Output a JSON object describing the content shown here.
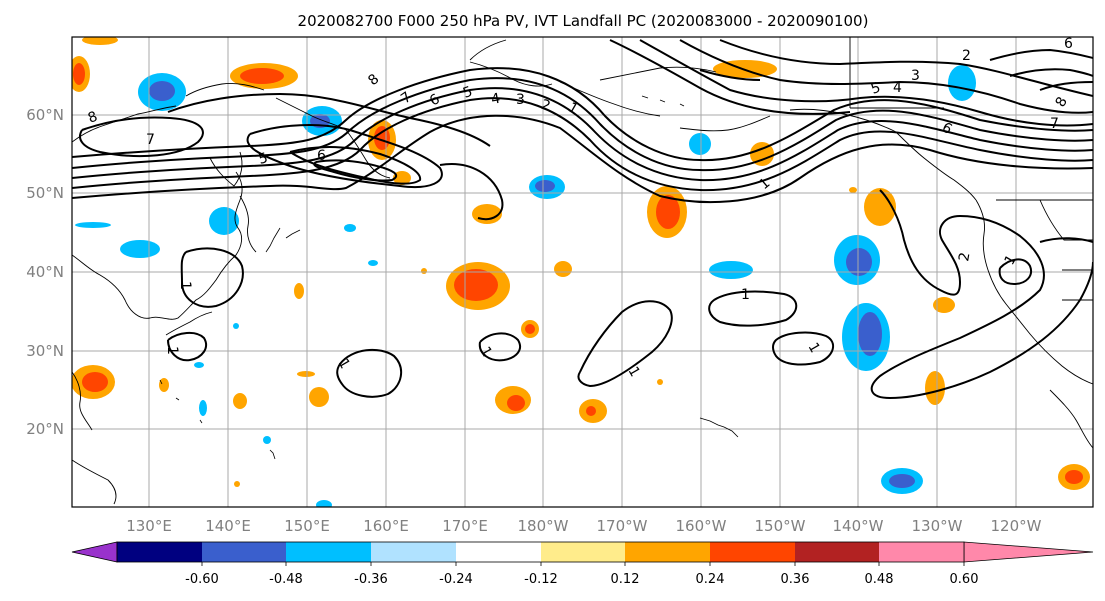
{
  "title": "2020082700 F000 250 hPa PV, IVT Landfall PC (2020083000 - 2020090100)",
  "lat_labels": [
    "60°N",
    "50°N",
    "40°N",
    "30°N",
    "20°N"
  ],
  "lon_labels": [
    "130°E",
    "140°E",
    "150°E",
    "160°E",
    "170°E",
    "180°W",
    "170°W",
    "160°W",
    "150°W",
    "140°W",
    "130°W",
    "120°W"
  ],
  "colorbar": {
    "colors": [
      "#9932cc",
      "#000080",
      "#3a5fcd",
      "#00bfff",
      "#b0e2ff",
      "#ffffff",
      "#ffec8b",
      "#ffa500",
      "#ff4500",
      "#b22222",
      "#ff88aa"
    ],
    "tick_labels": [
      "-0.60",
      "-0.48",
      "-0.36",
      "-0.24",
      "-0.12",
      "0.12",
      "0.24",
      "0.36",
      "0.48",
      "0.60"
    ]
  },
  "contour_labels": [
    "8",
    "7",
    "6",
    "5",
    "4",
    "3",
    "2",
    "1",
    "8",
    "7",
    "6",
    "5",
    "6",
    "5",
    "4",
    "3",
    "2",
    "8",
    "7",
    "6",
    "1",
    "1",
    "1",
    "1",
    "1",
    "1",
    "1",
    "1",
    "1",
    "2"
  ]
}
